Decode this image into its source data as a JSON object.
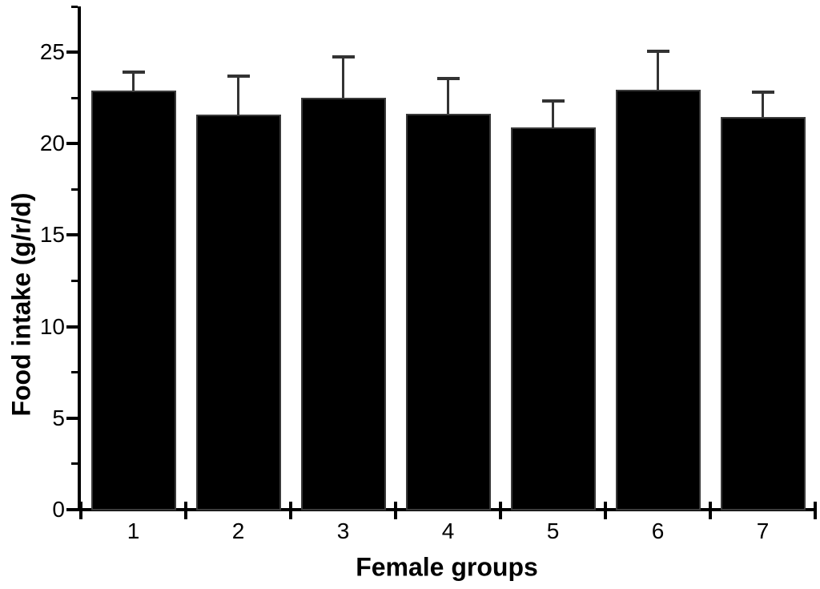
{
  "chart_data": {
    "type": "bar",
    "title": "",
    "xlabel": "Female groups",
    "ylabel": "Food intake (g/r/d)",
    "categories": [
      "1",
      "2",
      "3",
      "4",
      "5",
      "6",
      "7"
    ],
    "series": [
      {
        "name": "Food intake",
        "values": [
          22.9,
          21.6,
          22.5,
          21.65,
          20.9,
          22.95,
          21.45
        ],
        "errors_plus": [
          1.0,
          2.1,
          2.25,
          1.9,
          1.45,
          2.1,
          1.35
        ]
      }
    ],
    "ylim": [
      0,
      27.5
    ],
    "yticks_major": [
      0,
      5,
      10,
      15,
      20,
      25
    ],
    "yticks_minor": [
      2.5,
      7.5,
      12.5,
      17.5,
      22.5,
      27.5
    ],
    "grid": false,
    "legend_position": "none",
    "bar_color": "#000000",
    "bar_edge_color": "#3a3a3a",
    "error_bar_color": "#333333",
    "axis_color": "#000000",
    "background_color": "#ffffff"
  }
}
